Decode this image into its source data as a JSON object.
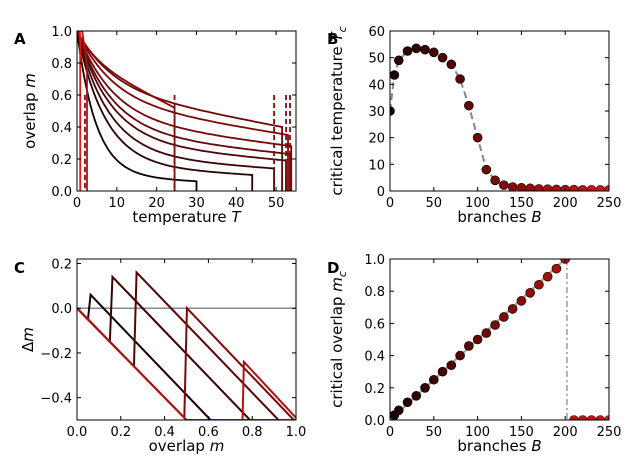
{
  "chart_data": [
    {
      "panel_label": "A",
      "type": "line",
      "xlabel": "temperature T",
      "ylabel": "overlap m",
      "xlim": [
        0,
        55
      ],
      "ylim": [
        0,
        1.0
      ],
      "xticks": [
        "0",
        "10",
        "20",
        "30",
        "40",
        "50"
      ],
      "yticks": [
        "0.0",
        "0.2",
        "0.4",
        "0.6",
        "0.8",
        "1.0"
      ],
      "series": [
        {
          "color": "#110000",
          "Tc": 30,
          "mc": 0.06
        },
        {
          "color": "#2a0203",
          "Tc": 44,
          "mc": 0.1
        },
        {
          "color": "#3d0304",
          "Tc": 49.5,
          "mc": 0.14
        },
        {
          "color": "#520405",
          "Tc": 52.5,
          "mc": 0.19
        },
        {
          "color": "#650506",
          "Tc": 53.5,
          "mc": 0.23
        },
        {
          "color": "#780607",
          "Tc": 53.8,
          "mc": 0.28
        },
        {
          "color": "#7d0708",
          "Tc": 53.0,
          "mc": 0.35
        },
        {
          "color": "#6e0506",
          "Tc": 51.5,
          "mc": 0.4
        },
        {
          "color": "#8a0a0a",
          "Tc": 24.5,
          "mc": 0.52
        },
        {
          "color": "#b0120f",
          "Tc": 2.5,
          "mc": 0.78
        },
        {
          "color": "#dd1a14",
          "Tc": 0.8,
          "mc": 0.95
        }
      ],
      "dashed_critical_T": [
        2.0,
        24.5,
        49.5,
        52.5,
        53.5
      ]
    },
    {
      "panel_label": "B",
      "type": "scatter",
      "xlabel": "branches B",
      "ylabel": "critical temperature T_c",
      "xlim": [
        0,
        250
      ],
      "ylim": [
        0,
        60
      ],
      "xticks": [
        "0",
        "50",
        "100",
        "150",
        "200",
        "250"
      ],
      "yticks": [
        "0",
        "10",
        "20",
        "30",
        "40",
        "50",
        "60"
      ],
      "x": [
        0,
        5,
        10,
        20,
        30,
        40,
        50,
        60,
        70,
        80,
        90,
        100,
        110,
        120,
        130,
        140,
        150,
        160,
        170,
        180,
        190,
        200,
        210,
        220,
        230,
        240,
        250
      ],
      "y": [
        30,
        43.5,
        49,
        52.5,
        53.5,
        53,
        52,
        50,
        47.5,
        42,
        32,
        20,
        8,
        4,
        2.2,
        1.5,
        1.2,
        1.0,
        0.8,
        0.7,
        0.6,
        0.5,
        0.5,
        0.4,
        0.4,
        0.4,
        0.4
      ],
      "fit_line": {
        "style": "dashed",
        "color": "#888888"
      }
    },
    {
      "panel_label": "C",
      "type": "line",
      "xlabel": "overlap m",
      "ylabel": "Δm",
      "xlim": [
        0,
        1.0
      ],
      "ylim": [
        -0.5,
        0.22
      ],
      "xticks": [
        "0.0",
        "0.2",
        "0.4",
        "0.6",
        "0.8",
        "1.0"
      ],
      "yticks": [
        "−0.4",
        "−0.2",
        "0.0",
        "0.2"
      ],
      "series": [
        {
          "color": "#dd1a14",
          "mc": null,
          "peak": 0
        },
        {
          "color": "#1a0000",
          "mc": 0.05,
          "peak": 0.06
        },
        {
          "color": "#3a0203",
          "mc": 0.15,
          "peak": 0.14
        },
        {
          "color": "#5a0405",
          "mc": 0.26,
          "peak": 0.16
        },
        {
          "color": "#800708",
          "mc": 0.49,
          "peak": 0.0
        },
        {
          "color": "#b0120f",
          "mc": 0.75,
          "peak": -0.24
        }
      ]
    },
    {
      "panel_label": "D",
      "type": "scatter",
      "xlabel": "branches B",
      "ylabel": "critical overlap m_c",
      "xlim": [
        0,
        250
      ],
      "ylim": [
        0,
        1.0
      ],
      "xticks": [
        "0",
        "50",
        "100",
        "150",
        "200",
        "250"
      ],
      "yticks": [
        "0.0",
        "0.2",
        "0.4",
        "0.6",
        "0.8",
        "1.0"
      ],
      "x": [
        5,
        10,
        20,
        30,
        40,
        50,
        60,
        70,
        80,
        90,
        100,
        110,
        120,
        130,
        140,
        150,
        160,
        170,
        180,
        190,
        200,
        210,
        220,
        230,
        240,
        250
      ],
      "y": [
        0.03,
        0.06,
        0.11,
        0.15,
        0.2,
        0.25,
        0.3,
        0.34,
        0.4,
        0.46,
        0.5,
        0.54,
        0.59,
        0.64,
        0.69,
        0.74,
        0.79,
        0.84,
        0.89,
        0.94,
        1.0,
        0.0,
        0.0,
        0.0,
        0.0,
        0.0
      ],
      "vline_x": 202,
      "fit_line": {
        "style": "solid",
        "color": "#aaaaaa"
      }
    }
  ]
}
